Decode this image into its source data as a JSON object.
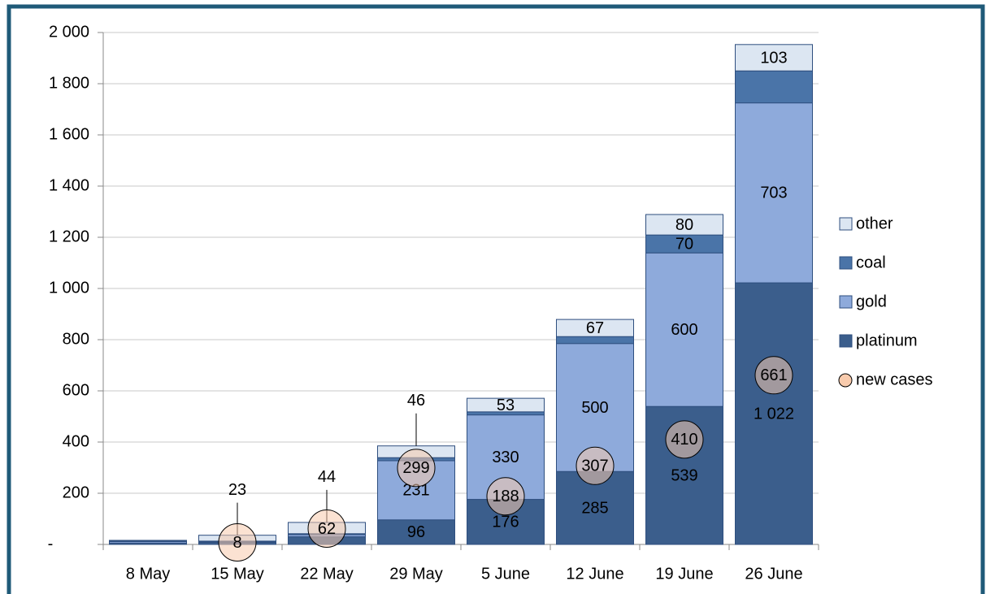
{
  "chart_data": {
    "type": "bar",
    "stacked": true,
    "categories": [
      "8 May",
      "15 May",
      "22 May",
      "29 May",
      "5 June",
      "12 June",
      "19 June",
      "26 June"
    ],
    "series": [
      {
        "name": "platinum",
        "color": "#3b5e8c",
        "label_color": "#ffffff",
        "values": [
          5,
          8,
          30,
          96,
          176,
          285,
          539,
          1022
        ],
        "value_labels": [
          null,
          null,
          null,
          "96",
          "176",
          "285",
          "539",
          "1 022"
        ]
      },
      {
        "name": "gold",
        "color": "#8eaadb",
        "label_color": "#000000",
        "values": [
          6,
          3,
          8,
          231,
          330,
          500,
          600,
          703
        ],
        "value_labels": [
          null,
          null,
          null,
          "231",
          "330",
          "500",
          "600",
          "703"
        ]
      },
      {
        "name": "coal",
        "color": "#4a74a8",
        "label_color": "#ffffff",
        "values": [
          2,
          2,
          4,
          12,
          12,
          27,
          70,
          125
        ],
        "value_labels": [
          null,
          null,
          null,
          null,
          null,
          null,
          "70",
          null
        ]
      },
      {
        "name": "other",
        "color": "#dce6f2",
        "label_color": "#000000",
        "values": [
          3,
          23,
          44,
          46,
          53,
          67,
          80,
          103
        ],
        "value_labels": [
          null,
          "23",
          "44",
          "46",
          "53",
          "67",
          "80",
          "103"
        ]
      }
    ],
    "bubbles": {
      "name": "new cases",
      "type": "bubble",
      "color": "#f8cbad",
      "values": [
        null,
        8,
        62,
        299,
        188,
        307,
        410,
        661
      ]
    },
    "ylim": [
      0,
      2000
    ],
    "yticks": [
      {
        "value": 0,
        "label": "-"
      },
      200,
      400,
      600,
      800,
      {
        "value": 1000,
        "label": "1 000"
      },
      {
        "value": 1200,
        "label": "1 200"
      },
      {
        "value": 1400,
        "label": "1 400"
      },
      {
        "value": 1600,
        "label": "1 600"
      },
      {
        "value": 1800,
        "label": "1 800"
      },
      {
        "value": 2000,
        "label": "2 000"
      }
    ],
    "grid": true,
    "legend": "right"
  }
}
